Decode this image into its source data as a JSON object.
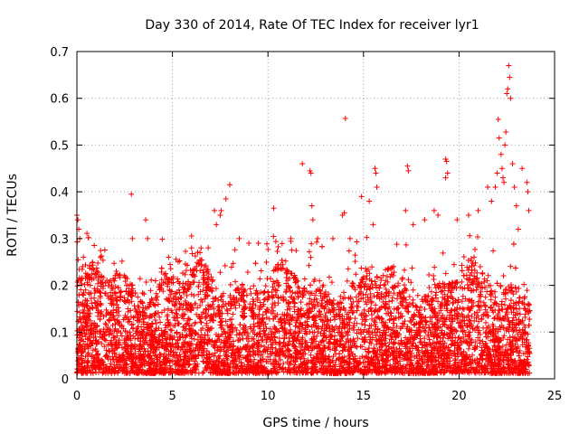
{
  "chart_data": {
    "type": "scatter",
    "title": "Day 330 of 2014, Rate Of TEC Index for receiver lyr1",
    "xlabel": "GPS time / hours",
    "ylabel": "ROTI / TECUs",
    "xlim": [
      0,
      25
    ],
    "ylim": [
      0,
      0.7
    ],
    "x_ticks": [
      0,
      5,
      10,
      15,
      20,
      25
    ],
    "x_tick_labels": [
      "0",
      "5",
      "10",
      "15",
      "20",
      "25"
    ],
    "y_ticks": [
      0,
      0.1,
      0.2,
      0.3,
      0.4,
      0.5,
      0.6,
      0.7
    ],
    "y_tick_labels": [
      "0",
      "0.1",
      "0.2",
      "0.3",
      "0.4",
      "0.5",
      "0.6",
      "0.7"
    ],
    "grid": true,
    "marker": "+",
    "series": [
      {
        "name": "ROTI",
        "color": "#ff0000",
        "points": [
          [
            0.0,
            0.35
          ],
          [
            0.05,
            0.34
          ],
          [
            0.1,
            0.32
          ],
          [
            0.15,
            0.3
          ],
          [
            0.3,
            0.24
          ],
          [
            0.5,
            0.22
          ],
          [
            0.7,
            0.2
          ],
          [
            2.85,
            0.395
          ],
          [
            2.9,
            0.3
          ],
          [
            3.6,
            0.34
          ],
          [
            3.7,
            0.3
          ],
          [
            4.8,
            0.26
          ],
          [
            5.3,
            0.25
          ],
          [
            6.0,
            0.28
          ],
          [
            6.5,
            0.28
          ],
          [
            7.2,
            0.36
          ],
          [
            7.3,
            0.33
          ],
          [
            7.5,
            0.35
          ],
          [
            7.55,
            0.36
          ],
          [
            7.8,
            0.385
          ],
          [
            8.0,
            0.415
          ],
          [
            8.5,
            0.3
          ],
          [
            9.0,
            0.29
          ],
          [
            9.5,
            0.29
          ],
          [
            10.3,
            0.365
          ],
          [
            11.2,
            0.3
          ],
          [
            11.8,
            0.46
          ],
          [
            12.2,
            0.445
          ],
          [
            12.25,
            0.44
          ],
          [
            12.3,
            0.37
          ],
          [
            12.35,
            0.34
          ],
          [
            12.6,
            0.3
          ],
          [
            13.4,
            0.3
          ],
          [
            13.9,
            0.35
          ],
          [
            14.0,
            0.355
          ],
          [
            14.05,
            0.557
          ],
          [
            14.3,
            0.3
          ],
          [
            14.9,
            0.39
          ],
          [
            15.3,
            0.38
          ],
          [
            15.6,
            0.45
          ],
          [
            15.65,
            0.44
          ],
          [
            15.7,
            0.41
          ],
          [
            15.5,
            0.33
          ],
          [
            17.3,
            0.455
          ],
          [
            17.35,
            0.445
          ],
          [
            17.2,
            0.36
          ],
          [
            17.6,
            0.33
          ],
          [
            18.2,
            0.34
          ],
          [
            18.7,
            0.36
          ],
          [
            18.9,
            0.35
          ],
          [
            19.3,
            0.47
          ],
          [
            19.35,
            0.465
          ],
          [
            19.4,
            0.44
          ],
          [
            19.3,
            0.43
          ],
          [
            19.9,
            0.34
          ],
          [
            20.5,
            0.35
          ],
          [
            21.0,
            0.36
          ],
          [
            21.5,
            0.41
          ],
          [
            21.7,
            0.38
          ],
          [
            21.9,
            0.41
          ],
          [
            22.0,
            0.44
          ],
          [
            22.05,
            0.555
          ],
          [
            22.1,
            0.515
          ],
          [
            22.2,
            0.48
          ],
          [
            22.25,
            0.45
          ],
          [
            22.3,
            0.43
          ],
          [
            22.35,
            0.42
          ],
          [
            22.4,
            0.5
          ],
          [
            22.45,
            0.528
          ],
          [
            22.5,
            0.61
          ],
          [
            22.55,
            0.62
          ],
          [
            22.6,
            0.67
          ],
          [
            22.65,
            0.645
          ],
          [
            22.7,
            0.6
          ],
          [
            22.8,
            0.46
          ],
          [
            22.9,
            0.41
          ],
          [
            23.0,
            0.37
          ],
          [
            23.1,
            0.32
          ],
          [
            23.3,
            0.45
          ],
          [
            23.55,
            0.42
          ],
          [
            23.6,
            0.4
          ],
          [
            23.65,
            0.36
          ]
        ]
      }
    ]
  }
}
